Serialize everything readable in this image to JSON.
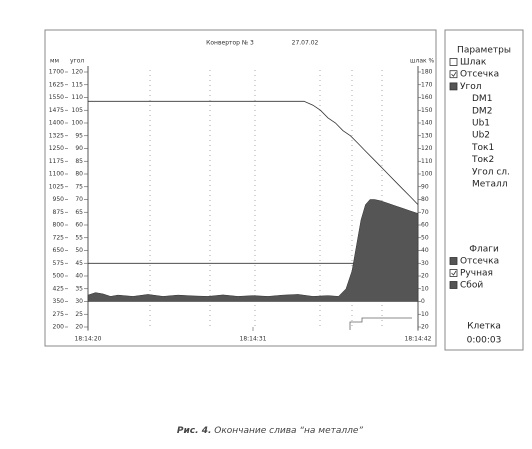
{
  "chart_data": {
    "type": "line",
    "header": [
      "Конвертор № 3",
      "27.07.02"
    ],
    "axis_labels": {
      "mm": "мм",
      "angle": "угол",
      "right": "шлак %"
    },
    "mm_lim": [
      200,
      1700
    ],
    "mm_ticks": [
      1700,
      1625,
      1550,
      1475,
      1400,
      1325,
      1250,
      1175,
      1100,
      1025,
      950,
      875,
      800,
      725,
      650,
      575,
      500,
      425,
      350,
      275,
      200
    ],
    "ylim": [
      20,
      120
    ],
    "yticks": [
      120,
      115,
      110,
      105,
      100,
      95,
      90,
      85,
      80,
      75,
      70,
      65,
      60,
      55,
      50,
      45,
      40,
      35,
      30,
      25,
      20
    ],
    "y2lim": [
      -20,
      180
    ],
    "y2ticks": [
      180,
      170,
      160,
      150,
      140,
      130,
      120,
      110,
      100,
      90,
      80,
      70,
      60,
      50,
      40,
      30,
      20,
      10,
      0,
      {
        "value": -10,
        "label": "10"
      },
      {
        "value": -20,
        "label": "20"
      }
    ],
    "xlim": [
      0,
      22
    ],
    "xticks": [
      {
        "value": 0,
        "label": "18:14:20"
      },
      {
        "value": 11,
        "label": "18:14:31"
      },
      {
        "value": 22,
        "label": "18:14:42"
      }
    ],
    "series": [
      {
        "color": "#333",
        "x": [
          0,
          14.4,
          15,
          15.5,
          16,
          16.5,
          17,
          17.5,
          18,
          18.5,
          19,
          19.5,
          20,
          20.5,
          21,
          21.5,
          22
        ],
        "values": [
          108.5,
          108.5,
          107,
          105,
          102,
          100,
          97,
          95,
          92,
          89,
          86,
          83,
          80,
          77,
          74,
          71,
          68
        ]
      },
      {
        "color": "#333",
        "x": [
          0,
          17.9
        ],
        "values": [
          45,
          45
        ]
      },
      {
        "color": "#555",
        "fill": true,
        "x": [
          0,
          0.5,
          1,
          1.5,
          2,
          3,
          4,
          5,
          6,
          7,
          8,
          9,
          10,
          11,
          12,
          13,
          14,
          15,
          16,
          16.7,
          17.2,
          17.6,
          17.9,
          18.2,
          18.5,
          18.8,
          19.1,
          19.5,
          20,
          20.5,
          21,
          21.5,
          22
        ],
        "values": [
          32.5,
          33.5,
          33,
          32,
          32.5,
          32,
          32.8,
          32,
          32.5,
          32.2,
          32,
          32.6,
          32,
          32.3,
          32,
          32.5,
          32.8,
          32,
          32.3,
          32,
          35,
          42,
          52,
          62,
          68,
          70,
          70,
          69.5,
          68.5,
          67.5,
          66.5,
          65.5,
          64.5
        ]
      }
    ]
  },
  "panel": {
    "title": "Параметры",
    "items": [
      {
        "label": "Шлак",
        "icon": "empty"
      },
      {
        "label": "Отсечка",
        "icon": "check"
      },
      {
        "label": "Угол",
        "icon": "filled"
      },
      {
        "label": "DM1"
      },
      {
        "label": "DM2"
      },
      {
        "label": "Ub1"
      },
      {
        "label": "Ub2"
      },
      {
        "label": "Ток1"
      },
      {
        "label": "Ток2"
      },
      {
        "label": "Угол сл."
      },
      {
        "label": "Металл"
      }
    ],
    "flags_title": "Флаги",
    "flags": [
      {
        "label": "Отсечка",
        "icon": "filled"
      },
      {
        "label": "Ручная",
        "icon": "check"
      },
      {
        "label": "Сбой",
        "icon": "filled"
      }
    ],
    "cell_title": "Клетка",
    "cell_value": "0:00:03"
  },
  "caption": {
    "label": "Рис. 4.",
    "text": "Окончание слива “на металле”"
  }
}
